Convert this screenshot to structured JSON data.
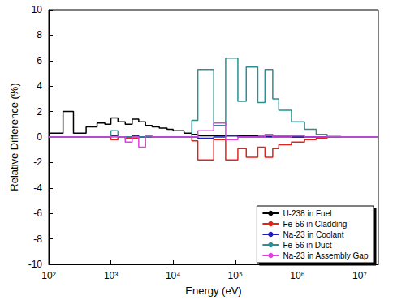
{
  "chart_data": {
    "type": "line",
    "x_label": "Energy (eV)",
    "y_label": "Relative Difference (%)",
    "log": "x",
    "grid": false,
    "legend": "lower right",
    "xlim": [
      100,
      20000000
    ],
    "xticks": [
      {
        "value": 100,
        "label": "10²"
      },
      {
        "value": 1000,
        "label": "10³"
      },
      {
        "value": 10000,
        "label": "10⁴"
      },
      {
        "value": 100000,
        "label": "10⁵"
      },
      {
        "value": 1000000,
        "label": "10⁶"
      },
      {
        "value": 10000000,
        "label": "10⁷"
      }
    ],
    "ylim": [
      -10,
      10
    ],
    "yticks": [
      -10,
      -8,
      -6,
      -4,
      -2,
      0,
      2,
      4,
      6,
      8,
      10
    ],
    "bins": [
      100,
      170,
      250,
      400,
      600,
      800,
      1000,
      1300,
      1700,
      2200,
      2800,
      3600,
      4600,
      6000,
      8000,
      10000,
      15000,
      20000,
      25000,
      45000,
      70000,
      110000,
      150000,
      230000,
      300000,
      400000,
      500000,
      800000,
      1300000,
      2000000,
      3000000,
      5000000,
      10000000,
      20000000
    ],
    "series": [
      {
        "name": "U-238 in Fuel",
        "color": "#000000",
        "line_style": "step",
        "values": [
          0.3,
          2.0,
          0.3,
          0.8,
          1.1,
          1.0,
          1.5,
          1.2,
          1.0,
          1.4,
          1.2,
          0.9,
          0.8,
          0.7,
          0.6,
          0.5,
          0.3,
          0.2,
          0.1,
          0.1,
          0.1,
          0.1,
          0.1,
          0.05,
          0.05,
          0.05,
          0.05,
          0,
          0,
          0,
          0,
          0,
          0
        ]
      },
      {
        "name": "Fe-56 in Cladding",
        "color": "#e3231b",
        "line_style": "step",
        "values": [
          0,
          0,
          0,
          0,
          0,
          0,
          -0.2,
          0,
          -0.1,
          -0.1,
          0,
          0,
          0,
          0,
          0,
          0,
          0,
          -0.3,
          -1.8,
          -0.2,
          -1.8,
          -0.9,
          -1.6,
          -0.8,
          -1.6,
          -0.9,
          -0.6,
          -0.4,
          -0.2,
          -0.1,
          0,
          0,
          0
        ]
      },
      {
        "name": "Na-23 in Coolant",
        "color": "#1f1fbf",
        "line_style": "step",
        "values": [
          0,
          0,
          0,
          0,
          0,
          0,
          0.1,
          0,
          0,
          0.1,
          0,
          0,
          0,
          0,
          0,
          0,
          0,
          0,
          -0.1,
          0,
          0.1,
          0,
          0,
          0,
          0,
          0,
          0,
          0,
          0,
          0,
          0,
          0,
          0
        ]
      },
      {
        "name": "Fe-56 in Duct",
        "color": "#2a9090",
        "line_style": "step",
        "values": [
          0,
          0,
          0,
          0,
          0,
          0,
          0.5,
          0,
          0,
          0,
          0,
          0,
          0,
          0,
          0,
          0,
          0,
          1.3,
          5.3,
          0.9,
          6.2,
          2.8,
          5.5,
          2.7,
          5.3,
          3.0,
          2.1,
          1.2,
          0.6,
          0.2,
          0.05,
          0,
          0
        ]
      },
      {
        "name": "Na-23 in Assembly Gap",
        "color": "#e040e0",
        "line_style": "step",
        "values": [
          0,
          0,
          0,
          0,
          0,
          0,
          0,
          0,
          -0.4,
          0,
          -0.8,
          0.1,
          0,
          0,
          0,
          0,
          0,
          0,
          0.5,
          1.1,
          -0.2,
          0,
          0,
          0,
          0.2,
          0,
          0,
          0.1,
          0,
          0,
          0,
          0,
          0
        ]
      }
    ]
  }
}
